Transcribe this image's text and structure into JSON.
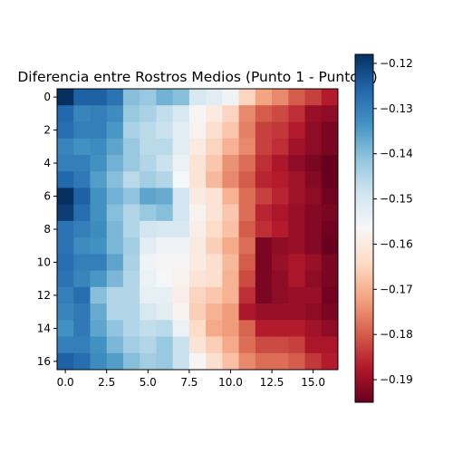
{
  "chart_data": {
    "type": "heatmap",
    "title": "Diferencia entre Rostros Medios (Punto 1 - Punto 2)",
    "xlabel": "",
    "ylabel": "",
    "nx": 17,
    "ny": 17,
    "x_ticks": [
      0.0,
      2.5,
      5.0,
      7.5,
      10.0,
      12.5,
      15.0
    ],
    "x_tick_labels": [
      "0.0",
      "2.5",
      "5.0",
      "7.5",
      "10.0",
      "12.5",
      "15.0"
    ],
    "y_ticks": [
      0,
      2,
      4,
      6,
      8,
      10,
      12,
      14,
      16
    ],
    "y_tick_labels": [
      "0",
      "2",
      "4",
      "6",
      "8",
      "10",
      "12",
      "14",
      "16"
    ],
    "colormap": "RdBu",
    "colorbar": {
      "vmin": -0.195,
      "vmax": -0.118,
      "ticks": [
        -0.12,
        -0.13,
        -0.14,
        -0.15,
        -0.16,
        -0.17,
        -0.18,
        -0.19
      ],
      "tick_labels": [
        "−0.12",
        "−0.13",
        "−0.14",
        "−0.15",
        "−0.16",
        "−0.17",
        "−0.18",
        "−0.19"
      ]
    },
    "values": [
      [
        -0.118,
        -0.125,
        -0.125,
        -0.128,
        -0.14,
        -0.142,
        -0.138,
        -0.14,
        -0.15,
        -0.152,
        -0.155,
        -0.165,
        -0.172,
        -0.175,
        -0.18,
        -0.183,
        -0.187
      ],
      [
        -0.126,
        -0.131,
        -0.13,
        -0.132,
        -0.142,
        -0.144,
        -0.147,
        -0.15,
        -0.157,
        -0.16,
        -0.165,
        -0.175,
        -0.18,
        -0.182,
        -0.185,
        -0.19,
        -0.191
      ],
      [
        -0.127,
        -0.13,
        -0.13,
        -0.134,
        -0.144,
        -0.146,
        -0.148,
        -0.152,
        -0.158,
        -0.163,
        -0.167,
        -0.176,
        -0.183,
        -0.184,
        -0.187,
        -0.191,
        -0.193
      ],
      [
        -0.131,
        -0.133,
        -0.132,
        -0.136,
        -0.142,
        -0.146,
        -0.146,
        -0.152,
        -0.16,
        -0.165,
        -0.17,
        -0.175,
        -0.183,
        -0.185,
        -0.189,
        -0.191,
        -0.193
      ],
      [
        -0.13,
        -0.13,
        -0.133,
        -0.138,
        -0.142,
        -0.145,
        -0.148,
        -0.154,
        -0.162,
        -0.167,
        -0.174,
        -0.178,
        -0.185,
        -0.188,
        -0.191,
        -0.193,
        -0.195
      ],
      [
        -0.126,
        -0.129,
        -0.135,
        -0.14,
        -0.146,
        -0.143,
        -0.145,
        -0.156,
        -0.162,
        -0.169,
        -0.175,
        -0.18,
        -0.186,
        -0.187,
        -0.189,
        -0.192,
        -0.195
      ],
      [
        -0.118,
        -0.125,
        -0.133,
        -0.138,
        -0.141,
        -0.136,
        -0.137,
        -0.149,
        -0.16,
        -0.162,
        -0.17,
        -0.178,
        -0.183,
        -0.186,
        -0.189,
        -0.191,
        -0.194
      ],
      [
        -0.12,
        -0.127,
        -0.133,
        -0.14,
        -0.145,
        -0.142,
        -0.14,
        -0.149,
        -0.158,
        -0.162,
        -0.167,
        -0.178,
        -0.186,
        -0.188,
        -0.19,
        -0.192,
        -0.193
      ],
      [
        -0.128,
        -0.13,
        -0.132,
        -0.139,
        -0.145,
        -0.149,
        -0.15,
        -0.15,
        -0.159,
        -0.164,
        -0.168,
        -0.18,
        -0.185,
        -0.187,
        -0.19,
        -0.192,
        -0.194
      ],
      [
        -0.128,
        -0.132,
        -0.133,
        -0.139,
        -0.143,
        -0.152,
        -0.155,
        -0.155,
        -0.16,
        -0.166,
        -0.171,
        -0.178,
        -0.193,
        -0.191,
        -0.19,
        -0.192,
        -0.195
      ],
      [
        -0.127,
        -0.13,
        -0.13,
        -0.136,
        -0.144,
        -0.155,
        -0.157,
        -0.157,
        -0.16,
        -0.163,
        -0.169,
        -0.18,
        -0.193,
        -0.19,
        -0.188,
        -0.19,
        -0.193
      ],
      [
        -0.128,
        -0.131,
        -0.134,
        -0.139,
        -0.145,
        -0.154,
        -0.156,
        -0.158,
        -0.162,
        -0.163,
        -0.17,
        -0.182,
        -0.193,
        -0.191,
        -0.188,
        -0.191,
        -0.193
      ],
      [
        -0.13,
        -0.127,
        -0.14,
        -0.145,
        -0.145,
        -0.153,
        -0.153,
        -0.159,
        -0.165,
        -0.167,
        -0.17,
        -0.185,
        -0.193,
        -0.191,
        -0.19,
        -0.19,
        -0.194
      ],
      [
        -0.131,
        -0.129,
        -0.137,
        -0.145,
        -0.145,
        -0.15,
        -0.152,
        -0.158,
        -0.166,
        -0.17,
        -0.173,
        -0.188,
        -0.19,
        -0.19,
        -0.19,
        -0.191,
        -0.193
      ],
      [
        -0.133,
        -0.129,
        -0.136,
        -0.141,
        -0.145,
        -0.147,
        -0.146,
        -0.154,
        -0.164,
        -0.171,
        -0.173,
        -0.179,
        -0.187,
        -0.187,
        -0.187,
        -0.189,
        -0.191
      ],
      [
        -0.13,
        -0.13,
        -0.133,
        -0.139,
        -0.143,
        -0.145,
        -0.142,
        -0.148,
        -0.162,
        -0.166,
        -0.171,
        -0.178,
        -0.182,
        -0.182,
        -0.183,
        -0.188,
        -0.188
      ],
      [
        -0.125,
        -0.127,
        -0.132,
        -0.135,
        -0.14,
        -0.143,
        -0.142,
        -0.148,
        -0.157,
        -0.163,
        -0.168,
        -0.175,
        -0.178,
        -0.178,
        -0.18,
        -0.184,
        -0.187
      ]
    ]
  }
}
